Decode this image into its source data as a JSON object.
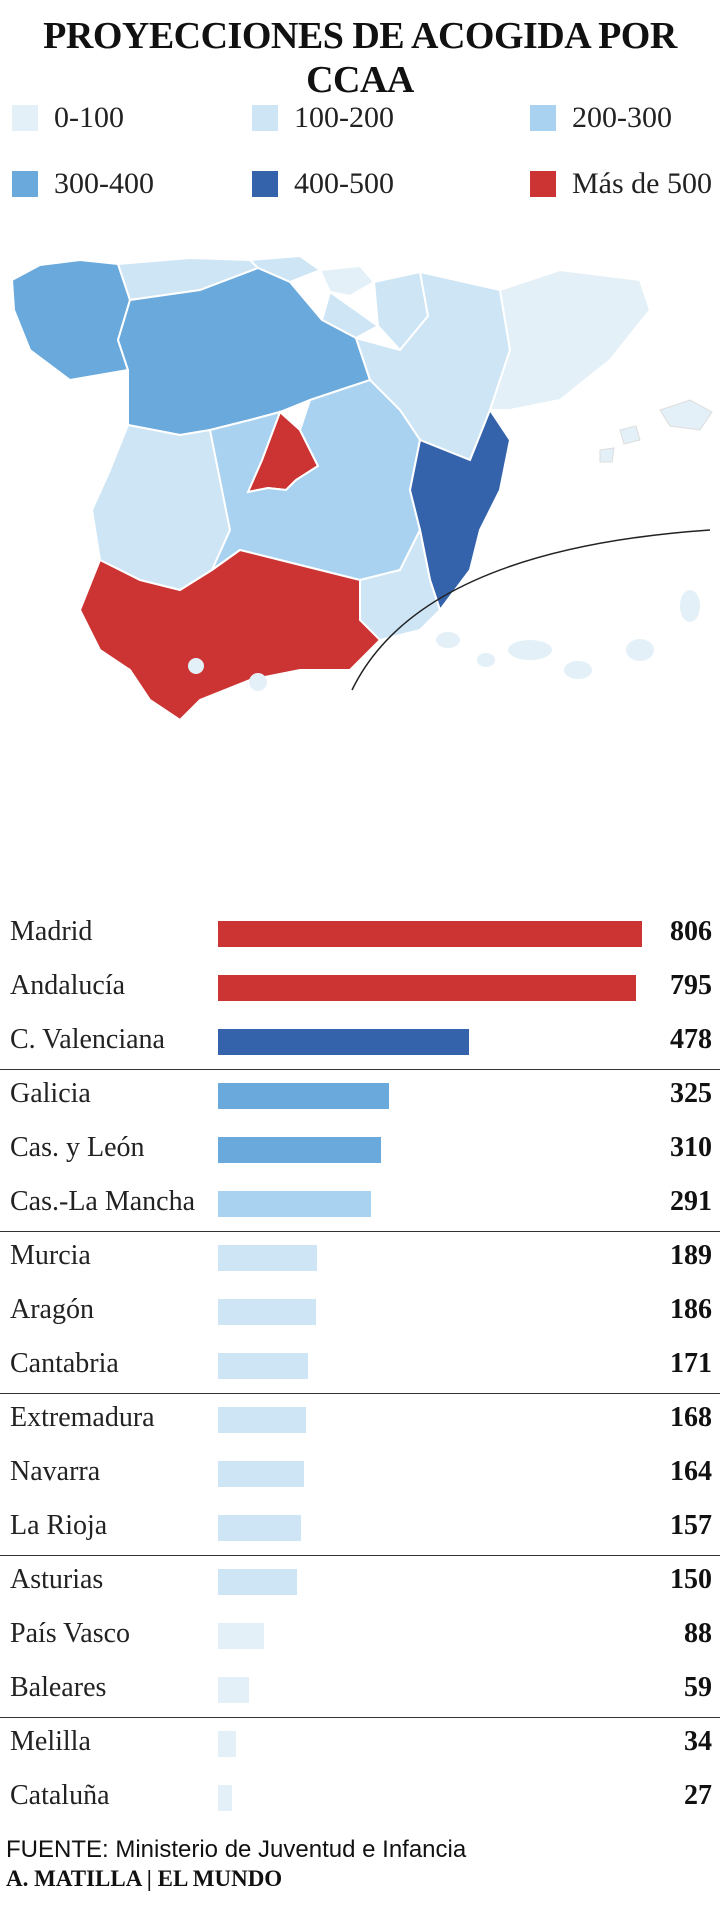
{
  "title": "PROYECCIONES DE ACOGIDA POR CCAA",
  "legend": [
    {
      "label": "0-100",
      "color": "#e3f0f7"
    },
    {
      "label": "100-200",
      "color": "#cde5f5"
    },
    {
      "label": "200-300",
      "color": "#a8d2f0"
    },
    {
      "label": "300-400",
      "color": "#6aa9dc"
    },
    {
      "label": "400-500",
      "color": "#3563ab"
    },
    {
      "label": "Más de 500",
      "color": "#cc3333"
    }
  ],
  "chart_data": {
    "type": "bar",
    "orientation": "horizontal",
    "categories": [
      "Madrid",
      "Andalucía",
      "C. Valenciana",
      "Galicia",
      "Cas. y León",
      "Cas.-La Mancha",
      "Murcia",
      "Aragón",
      "Cantabria",
      "Extremadura",
      "Navarra",
      "La Rioja",
      "Asturias",
      "País Vasco",
      "Baleares",
      "Melilla",
      "Cataluña"
    ],
    "values": [
      806,
      795,
      478,
      325,
      310,
      291,
      189,
      186,
      171,
      168,
      164,
      157,
      150,
      88,
      59,
      34,
      27
    ],
    "value_labels": [
      "806",
      "795",
      "478",
      "325",
      "310",
      "291",
      "189",
      "186",
      "171",
      "168",
      "164",
      "157",
      "150",
      "88",
      "59",
      "34",
      "27"
    ],
    "colors": [
      "#cc3333",
      "#cc3333",
      "#3563ab",
      "#6aa9dc",
      "#6aa9dc",
      "#a8d2f0",
      "#cde5f5",
      "#cde5f5",
      "#cde5f5",
      "#cde5f5",
      "#cde5f5",
      "#cde5f5",
      "#cde5f5",
      "#e3f0f7",
      "#e3f0f7",
      "#e3f0f7",
      "#e3f0f7"
    ],
    "xlim": [
      0,
      806
    ],
    "separators_after": [
      2,
      5,
      8,
      11,
      14
    ]
  },
  "footer": {
    "source": "FUENTE: Ministerio de Juventud e Infancia",
    "credit": "A. MATILLA | EL MUNDO"
  }
}
